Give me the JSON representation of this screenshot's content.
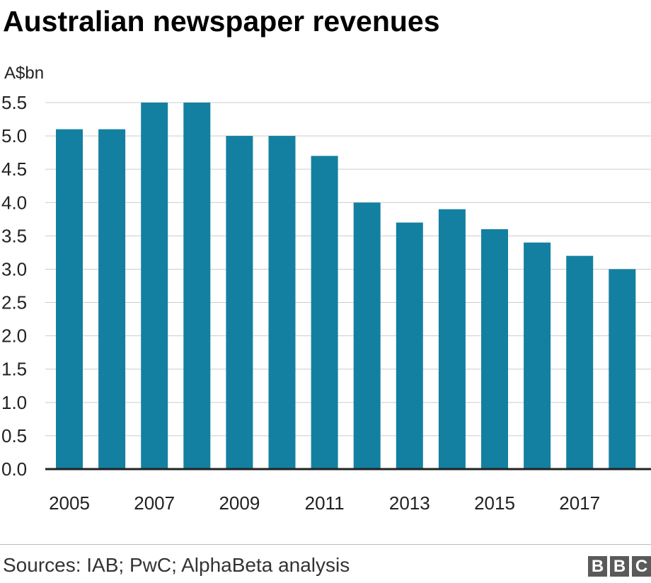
{
  "chart_data": {
    "type": "bar",
    "title": "Australian newspaper revenues",
    "ylabel": "A$bn",
    "xlabel": "",
    "categories": [
      "2005",
      "2006",
      "2007",
      "2008",
      "2009",
      "2010",
      "2011",
      "2012",
      "2013",
      "2014",
      "2015",
      "2016",
      "2017",
      "2018"
    ],
    "values": [
      5.1,
      5.1,
      5.5,
      5.5,
      5.0,
      5.0,
      4.7,
      4.0,
      3.7,
      3.9,
      3.6,
      3.4,
      3.2,
      3.0
    ],
    "x_tick_labels": [
      "2005",
      "2007",
      "2009",
      "2011",
      "2013",
      "2015",
      "2017"
    ],
    "y_ticks": [
      "0.0",
      "0.5",
      "1.0",
      "1.5",
      "2.0",
      "2.5",
      "3.0",
      "3.5",
      "4.0",
      "4.5",
      "5.0",
      "5.5"
    ],
    "ylim": [
      0,
      5.5
    ],
    "grid": true,
    "bar_color": "#1380a1"
  },
  "footer": {
    "source": "Sources: IAB; PwC; AlphaBeta analysis",
    "logo": [
      "B",
      "B",
      "C"
    ]
  }
}
